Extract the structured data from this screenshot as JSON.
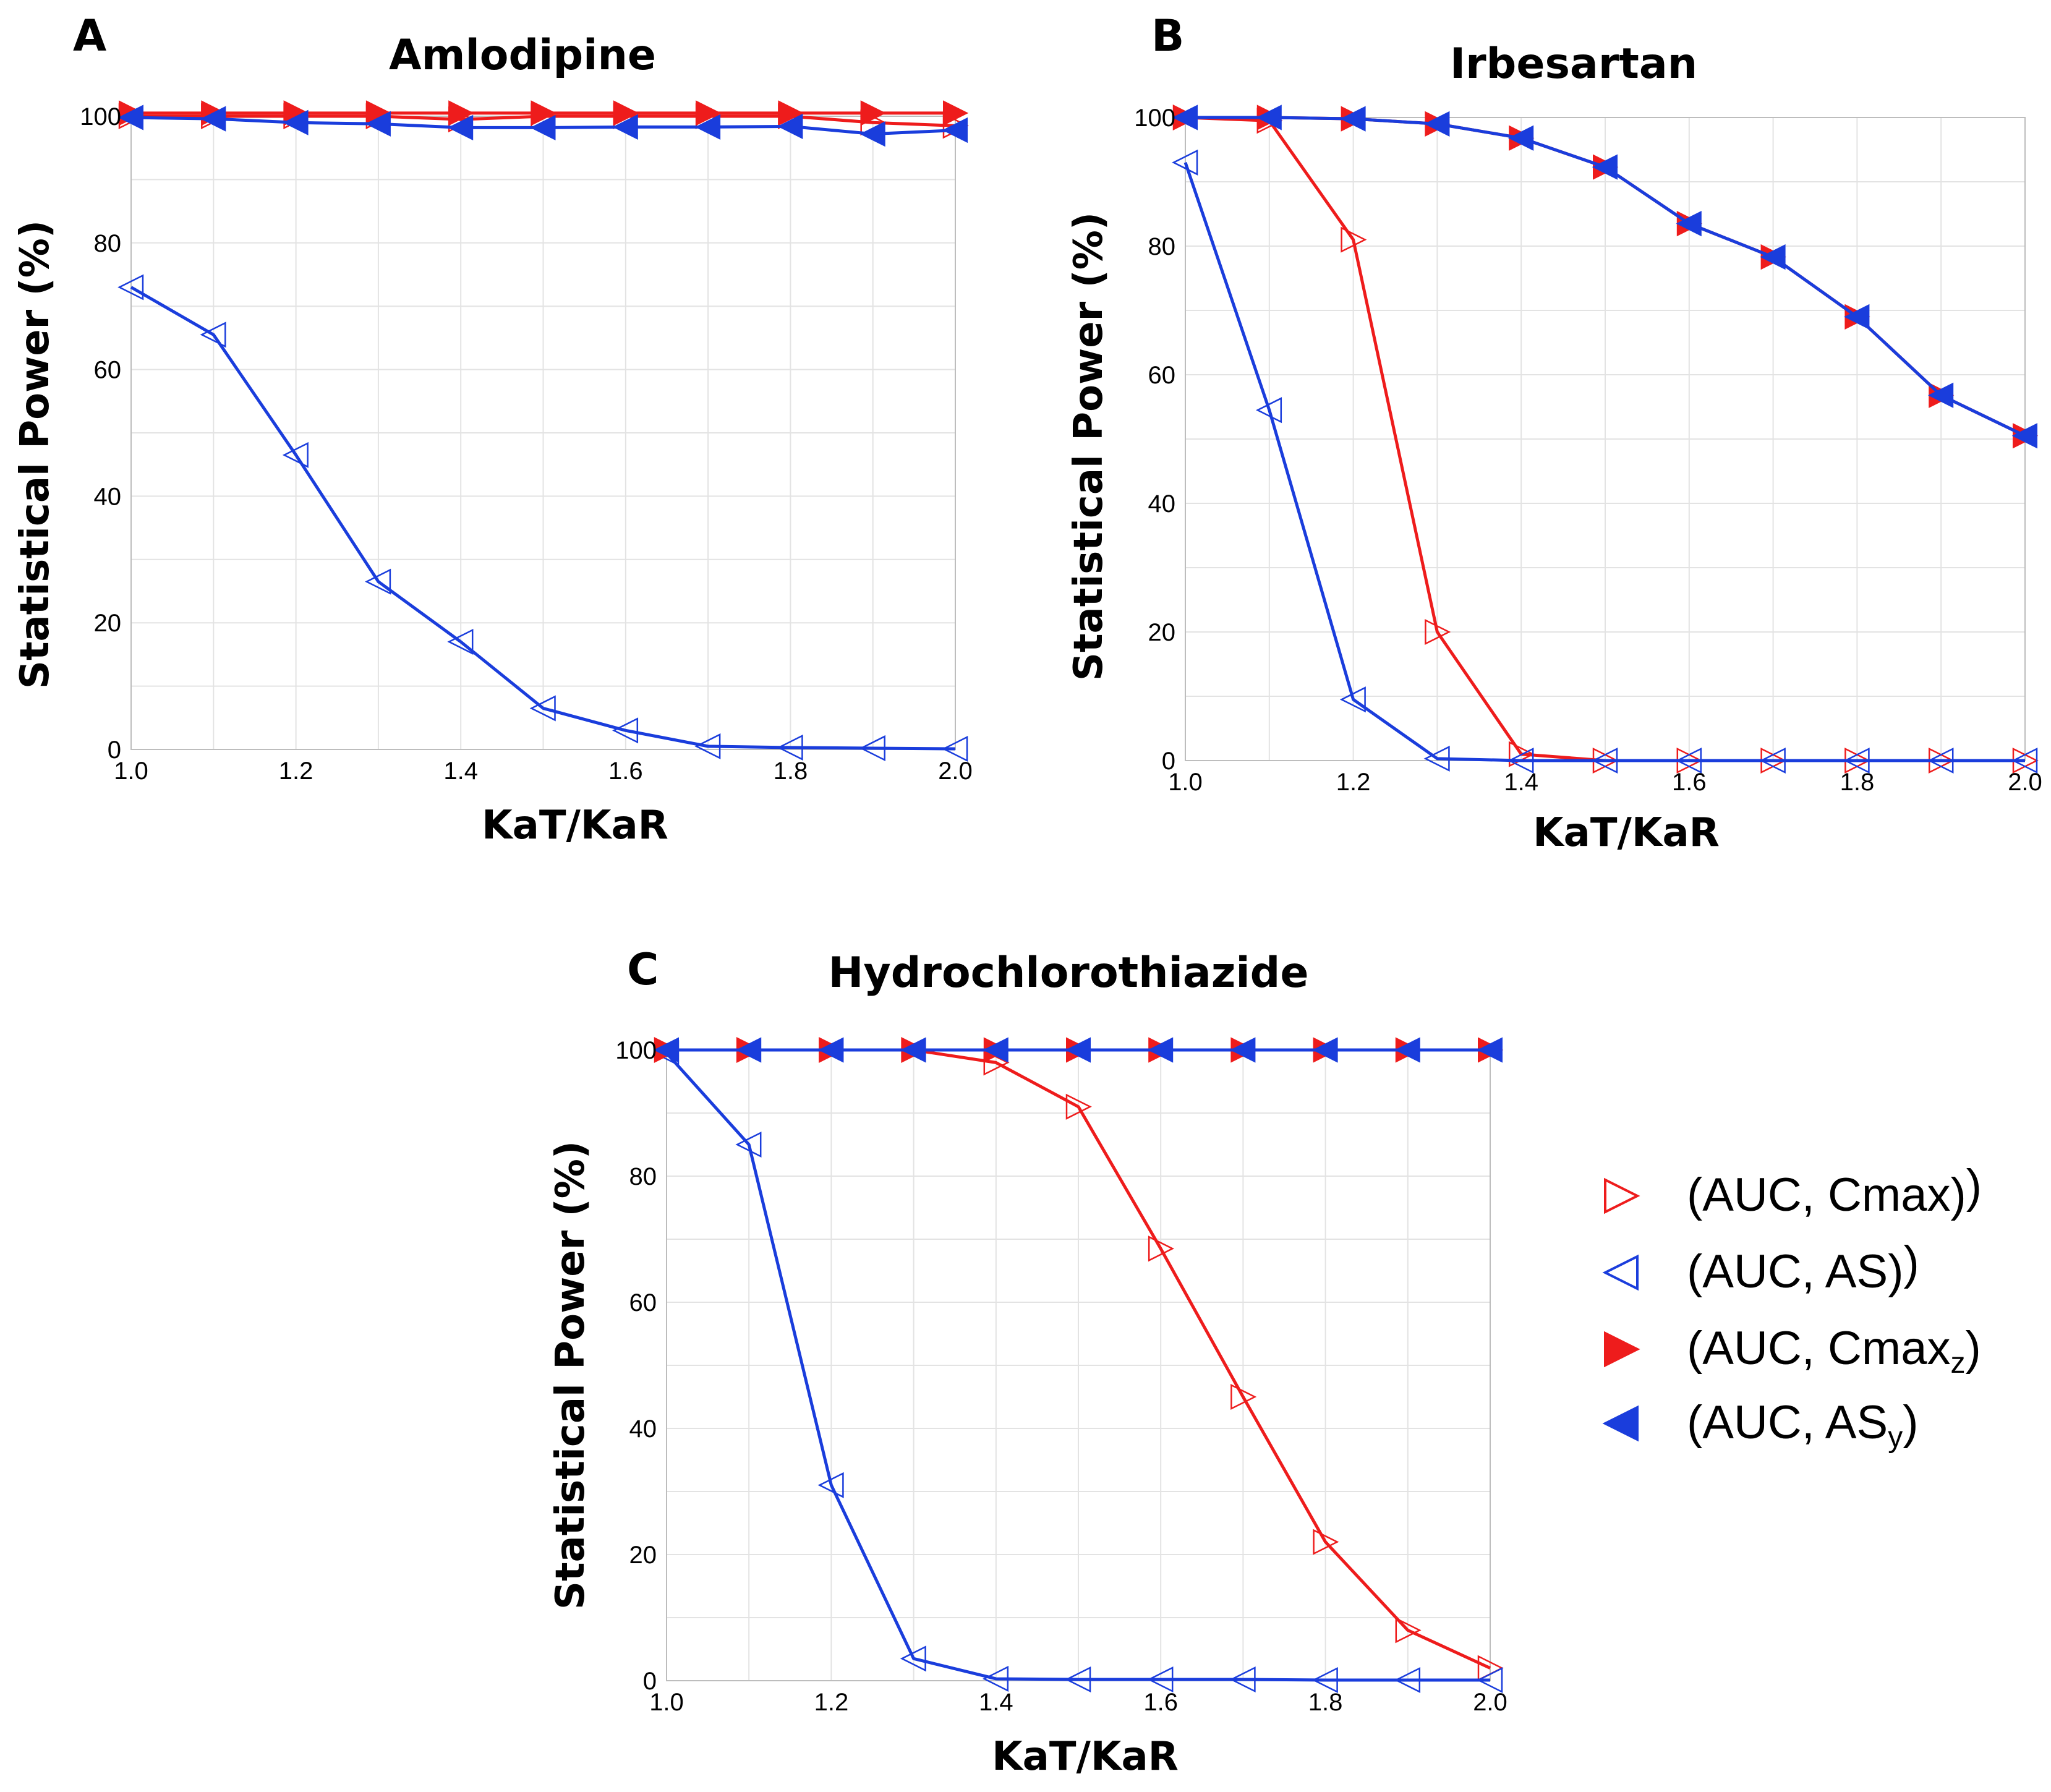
{
  "colors": {
    "red": "#ee1c1c",
    "blue": "#1a3ddc"
  },
  "legend": [
    {
      "label": "(AUC, Cmax)",
      "sub": "",
      "color": "#ee1c1c",
      "dir": "right",
      "filled": false
    },
    {
      "label": "(AUC, AS)",
      "sub": "",
      "color": "#1a3ddc",
      "dir": "left",
      "filled": false
    },
    {
      "label": "(AUC, Cmax",
      "sub": "z",
      "color": "#ee1c1c",
      "dir": "right",
      "filled": true
    },
    {
      "label": "(AUC, AS",
      "sub": "y",
      "color": "#1a3ddc",
      "dir": "left",
      "filled": true
    }
  ],
  "chart_data": [
    {
      "letter": "A",
      "type": "line",
      "title": "Amlodipine",
      "xlabel": "KaT/KaR",
      "ylabel": "Statistical Power (%)",
      "xlim": [
        1.0,
        2.0
      ],
      "ylim": [
        0,
        100
      ],
      "xticks": [
        "1.0",
        "1.2",
        "1.4",
        "1.6",
        "1.8",
        "2.0"
      ],
      "yticks": [
        "0",
        "20",
        "40",
        "60",
        "80",
        "100"
      ],
      "x": [
        1.0,
        1.1,
        1.2,
        1.3,
        1.4,
        1.5,
        1.6,
        1.7,
        1.8,
        1.9,
        2.0
      ],
      "series": [
        {
          "name": "(AUC, Cmax)",
          "color": "#ee1c1c",
          "dir": "right",
          "filled": false,
          "values": [
            100,
            100,
            100,
            100,
            99.5,
            100,
            100,
            100,
            100,
            99,
            98.5
          ]
        },
        {
          "name": "(AUC, AS)",
          "color": "#1a3ddc",
          "dir": "left",
          "filled": false,
          "values": [
            73,
            65.5,
            46.5,
            26.5,
            17,
            6.5,
            3,
            0.5,
            0.3,
            0.2,
            0.1
          ]
        },
        {
          "name": "(AUC, Cmax_z)",
          "color": "#ee1c1c",
          "dir": "right",
          "filled": true,
          "values": [
            100.5,
            100.5,
            100.5,
            100.5,
            100.5,
            100.5,
            100.5,
            100.5,
            100.5,
            100.5,
            100.5
          ]
        },
        {
          "name": "(AUC, AS_y)",
          "color": "#1a3ddc",
          "dir": "left",
          "filled": true,
          "values": [
            99.8,
            99.6,
            99,
            98.8,
            98.2,
            98.2,
            98.3,
            98.3,
            98.4,
            97.2,
            97.8
          ]
        }
      ]
    },
    {
      "letter": "B",
      "type": "line",
      "title": "Irbesartan",
      "xlabel": "KaT/KaR",
      "ylabel": "Statistical Power (%)",
      "xlim": [
        1.0,
        2.0
      ],
      "ylim": [
        0,
        100
      ],
      "xticks": [
        "1.0",
        "1.2",
        "1.4",
        "1.6",
        "1.8",
        "2.0"
      ],
      "yticks": [
        "0",
        "20",
        "40",
        "60",
        "80",
        "100"
      ],
      "x": [
        1.0,
        1.1,
        1.2,
        1.3,
        1.4,
        1.5,
        1.6,
        1.7,
        1.8,
        1.9,
        2.0
      ],
      "series": [
        {
          "name": "(AUC, Cmax)",
          "color": "#ee1c1c",
          "dir": "right",
          "filled": false,
          "values": [
            100,
            99.5,
            81,
            20,
            1,
            0,
            0,
            0,
            0,
            0,
            0
          ]
        },
        {
          "name": "(AUC, AS)",
          "color": "#1a3ddc",
          "dir": "left",
          "filled": false,
          "values": [
            93,
            54.5,
            9.5,
            0.3,
            0,
            0,
            0,
            0,
            0,
            0,
            0
          ]
        },
        {
          "name": "(AUC, Cmax_z)",
          "color": "#ee1c1c",
          "dir": "right",
          "filled": true,
          "values": [
            100,
            100,
            99.8,
            99,
            96.8,
            92.3,
            83.5,
            78.3,
            69,
            56.8,
            50.5
          ]
        },
        {
          "name": "(AUC, AS_y)",
          "color": "#1a3ddc",
          "dir": "left",
          "filled": true,
          "values": [
            100,
            100,
            99.8,
            99,
            96.8,
            92.3,
            83.5,
            78.3,
            69,
            56.8,
            50.5
          ]
        }
      ]
    },
    {
      "letter": "C",
      "type": "line",
      "title": "Hydrochlorothiazide",
      "xlabel": "KaT/KaR",
      "ylabel": "Statistical Power (%)",
      "xlim": [
        1.0,
        2.0
      ],
      "ylim": [
        0,
        100
      ],
      "xticks": [
        "1.0",
        "1.2",
        "1.4",
        "1.6",
        "1.8",
        "2.0"
      ],
      "yticks": [
        "0",
        "20",
        "40",
        "60",
        "80",
        "100"
      ],
      "x": [
        1.0,
        1.1,
        1.2,
        1.3,
        1.4,
        1.5,
        1.6,
        1.7,
        1.8,
        1.9,
        2.0
      ],
      "series": [
        {
          "name": "(AUC, Cmax)",
          "color": "#ee1c1c",
          "dir": "right",
          "filled": false,
          "values": [
            100,
            100,
            100,
            100,
            98,
            91,
            68.5,
            45,
            22,
            8,
            2
          ]
        },
        {
          "name": "(AUC, AS)",
          "color": "#1a3ddc",
          "dir": "left",
          "filled": false,
          "values": [
            99.5,
            85,
            31,
            3.5,
            0.3,
            0.2,
            0.2,
            0.2,
            0.1,
            0.1,
            0.1
          ]
        },
        {
          "name": "(AUC, Cmax_z)",
          "color": "#ee1c1c",
          "dir": "right",
          "filled": true,
          "values": [
            100,
            100,
            100,
            100,
            100,
            100,
            100,
            100,
            100,
            100,
            100
          ]
        },
        {
          "name": "(AUC, AS_y)",
          "color": "#1a3ddc",
          "dir": "left",
          "filled": true,
          "values": [
            100,
            100,
            100,
            100,
            100,
            100,
            100,
            100,
            100,
            100,
            100
          ]
        }
      ]
    }
  ]
}
